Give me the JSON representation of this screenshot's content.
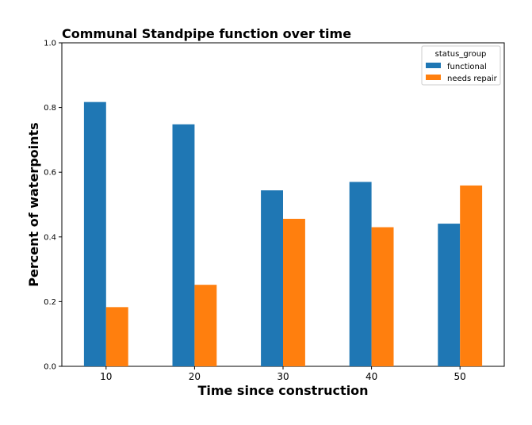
{
  "chart_data": {
    "type": "bar",
    "title": "Communal Standpipe function over time",
    "xlabel": "Time since construction",
    "ylabel": "Percent of waterpoints",
    "categories": [
      "10",
      "20",
      "30",
      "40",
      "50"
    ],
    "series": [
      {
        "name": "functional",
        "color": "#1f77b4",
        "values": [
          0.817,
          0.748,
          0.544,
          0.57,
          0.441
        ]
      },
      {
        "name": "needs repair",
        "color": "#ff7f0e",
        "values": [
          0.183,
          0.252,
          0.456,
          0.43,
          0.559
        ]
      }
    ],
    "ylim": [
      0,
      1
    ],
    "yticks": [
      "0.0",
      "0.2",
      "0.4",
      "0.6",
      "0.8",
      "1.0"
    ],
    "legend": {
      "title": "status_group",
      "position": "top-right"
    },
    "grid": false
  }
}
